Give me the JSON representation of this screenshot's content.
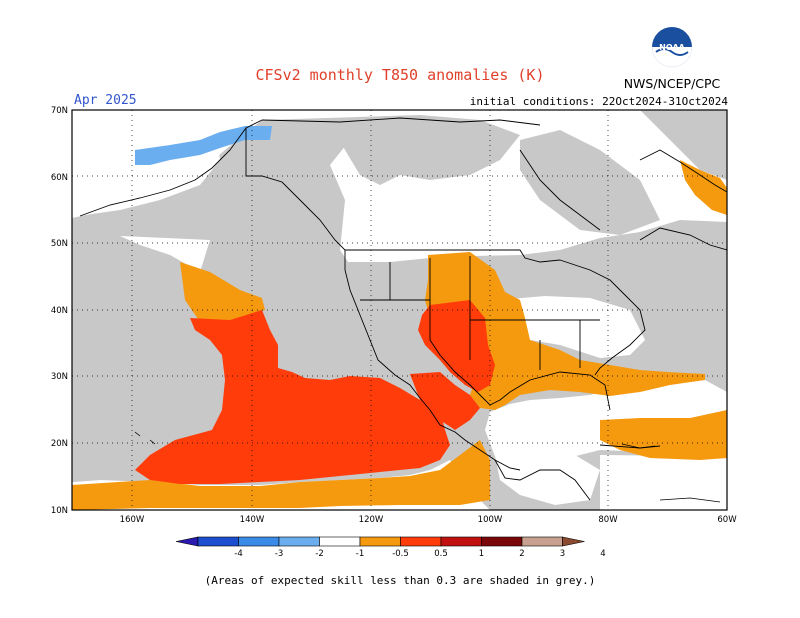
{
  "header": {
    "title": "CFSv2 monthly T850 anomalies (K)",
    "valid_month": "Apr 2025",
    "initial_conditions": "initial conditions: 22Oct2024-31Oct2024",
    "agency": "NWS/NCEP/CPC",
    "logo_text": "NOAA"
  },
  "map": {
    "lat_labels": [
      "70N",
      "60N",
      "50N",
      "40N",
      "30N",
      "20N",
      "10N"
    ],
    "lon_labels": [
      "160W",
      "140W",
      "120W",
      "100W",
      "80W",
      "60W"
    ],
    "skill_mask_color": "#c8c8c8",
    "coast_color": "#000000"
  },
  "colorbar": {
    "labels": [
      "-4",
      "-3",
      "-2",
      "-1",
      "-0.5",
      "0.5",
      "1",
      "2",
      "3",
      "4"
    ],
    "colors": [
      "#2a1ab0",
      "#1c4fd0",
      "#3a8ae8",
      "#6aaef0",
      "#ffffff",
      "#f59a0f",
      "#ff3c0a",
      "#c01010",
      "#7a0808",
      "#c8a090",
      "#8a4a30"
    ]
  },
  "footnote": "(Areas of expected skill less than 0.3 are shaded in grey.)"
}
